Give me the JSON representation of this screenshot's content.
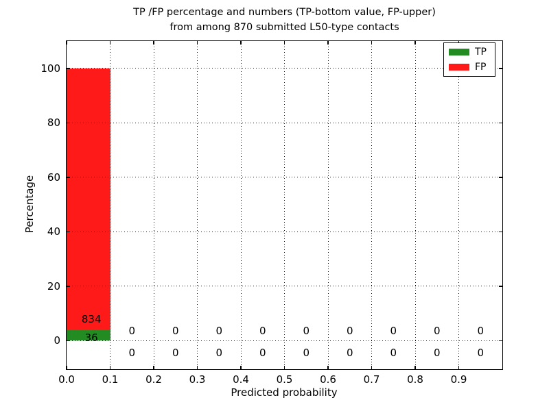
{
  "title": {
    "line1": "TP /FP percentage and numbers (TP-bottom value, FP-upper)",
    "line2": "from among 870 submitted L50-type contacts"
  },
  "axes": {
    "x_label": "Predicted probability",
    "y_label": "Percentage"
  },
  "legend": {
    "entries": [
      {
        "label": "TP",
        "color": "#228b22"
      },
      {
        "label": "FP",
        "color": "#ff1a1a"
      }
    ]
  },
  "chart_data": {
    "type": "bar",
    "stacked": true,
    "title": "TP /FP percentage and numbers (TP-bottom value, FP-upper)\nfrom among 870 submitted L50-type contacts",
    "xlabel": "Predicted probability",
    "ylabel": "Percentage",
    "total_submitted_contacts": 870,
    "xlim": [
      0.0,
      1.0
    ],
    "ylim": [
      -10.5,
      110
    ],
    "xticks": [
      0.0,
      0.1,
      0.2,
      0.3,
      0.4,
      0.5,
      0.6,
      0.7,
      0.8,
      0.9
    ],
    "xtick_labels": [
      "0.0",
      "0.1",
      "0.2",
      "0.3",
      "0.4",
      "0.5",
      "0.6",
      "0.7",
      "0.8",
      "0.9"
    ],
    "yticks": [
      0,
      20,
      40,
      60,
      80,
      100
    ],
    "ytick_labels": [
      "0",
      "20",
      "40",
      "60",
      "80",
      "100"
    ],
    "grid": {
      "style": "dotted",
      "color": "#111111",
      "on": true
    },
    "legend_position": "upper right",
    "bin_edges": [
      0.0,
      0.1,
      0.2,
      0.3,
      0.4,
      0.5,
      0.6,
      0.7,
      0.8,
      0.9,
      1.0
    ],
    "series": [
      {
        "name": "TP",
        "color": "#228b22",
        "counts": [
          36,
          0,
          0,
          0,
          0,
          0,
          0,
          0,
          0,
          0
        ],
        "percent": [
          4.14,
          0,
          0,
          0,
          0,
          0,
          0,
          0,
          0,
          0
        ]
      },
      {
        "name": "FP",
        "color": "#ff1a1a",
        "counts": [
          834,
          0,
          0,
          0,
          0,
          0,
          0,
          0,
          0,
          0
        ],
        "percent": [
          95.86,
          0,
          0,
          0,
          0,
          0,
          0,
          0,
          0,
          0
        ]
      }
    ],
    "annotations": [
      {
        "x": 0.057,
        "y": 7.9,
        "text": "834"
      },
      {
        "x": 0.057,
        "y": 1.1,
        "text": "36"
      },
      {
        "x": 0.15,
        "y": 3.6,
        "text": "0"
      },
      {
        "x": 0.25,
        "y": 3.6,
        "text": "0"
      },
      {
        "x": 0.35,
        "y": 3.6,
        "text": "0"
      },
      {
        "x": 0.45,
        "y": 3.6,
        "text": "0"
      },
      {
        "x": 0.55,
        "y": 3.6,
        "text": "0"
      },
      {
        "x": 0.65,
        "y": 3.6,
        "text": "0"
      },
      {
        "x": 0.75,
        "y": 3.6,
        "text": "0"
      },
      {
        "x": 0.85,
        "y": 3.6,
        "text": "0"
      },
      {
        "x": 0.95,
        "y": 3.6,
        "text": "0"
      },
      {
        "x": 0.15,
        "y": -4.5,
        "text": "0"
      },
      {
        "x": 0.25,
        "y": -4.5,
        "text": "0"
      },
      {
        "x": 0.35,
        "y": -4.5,
        "text": "0"
      },
      {
        "x": 0.45,
        "y": -4.5,
        "text": "0"
      },
      {
        "x": 0.55,
        "y": -4.5,
        "text": "0"
      },
      {
        "x": 0.65,
        "y": -4.5,
        "text": "0"
      },
      {
        "x": 0.75,
        "y": -4.5,
        "text": "0"
      },
      {
        "x": 0.85,
        "y": -4.5,
        "text": "0"
      },
      {
        "x": 0.95,
        "y": -4.5,
        "text": "0"
      }
    ]
  }
}
